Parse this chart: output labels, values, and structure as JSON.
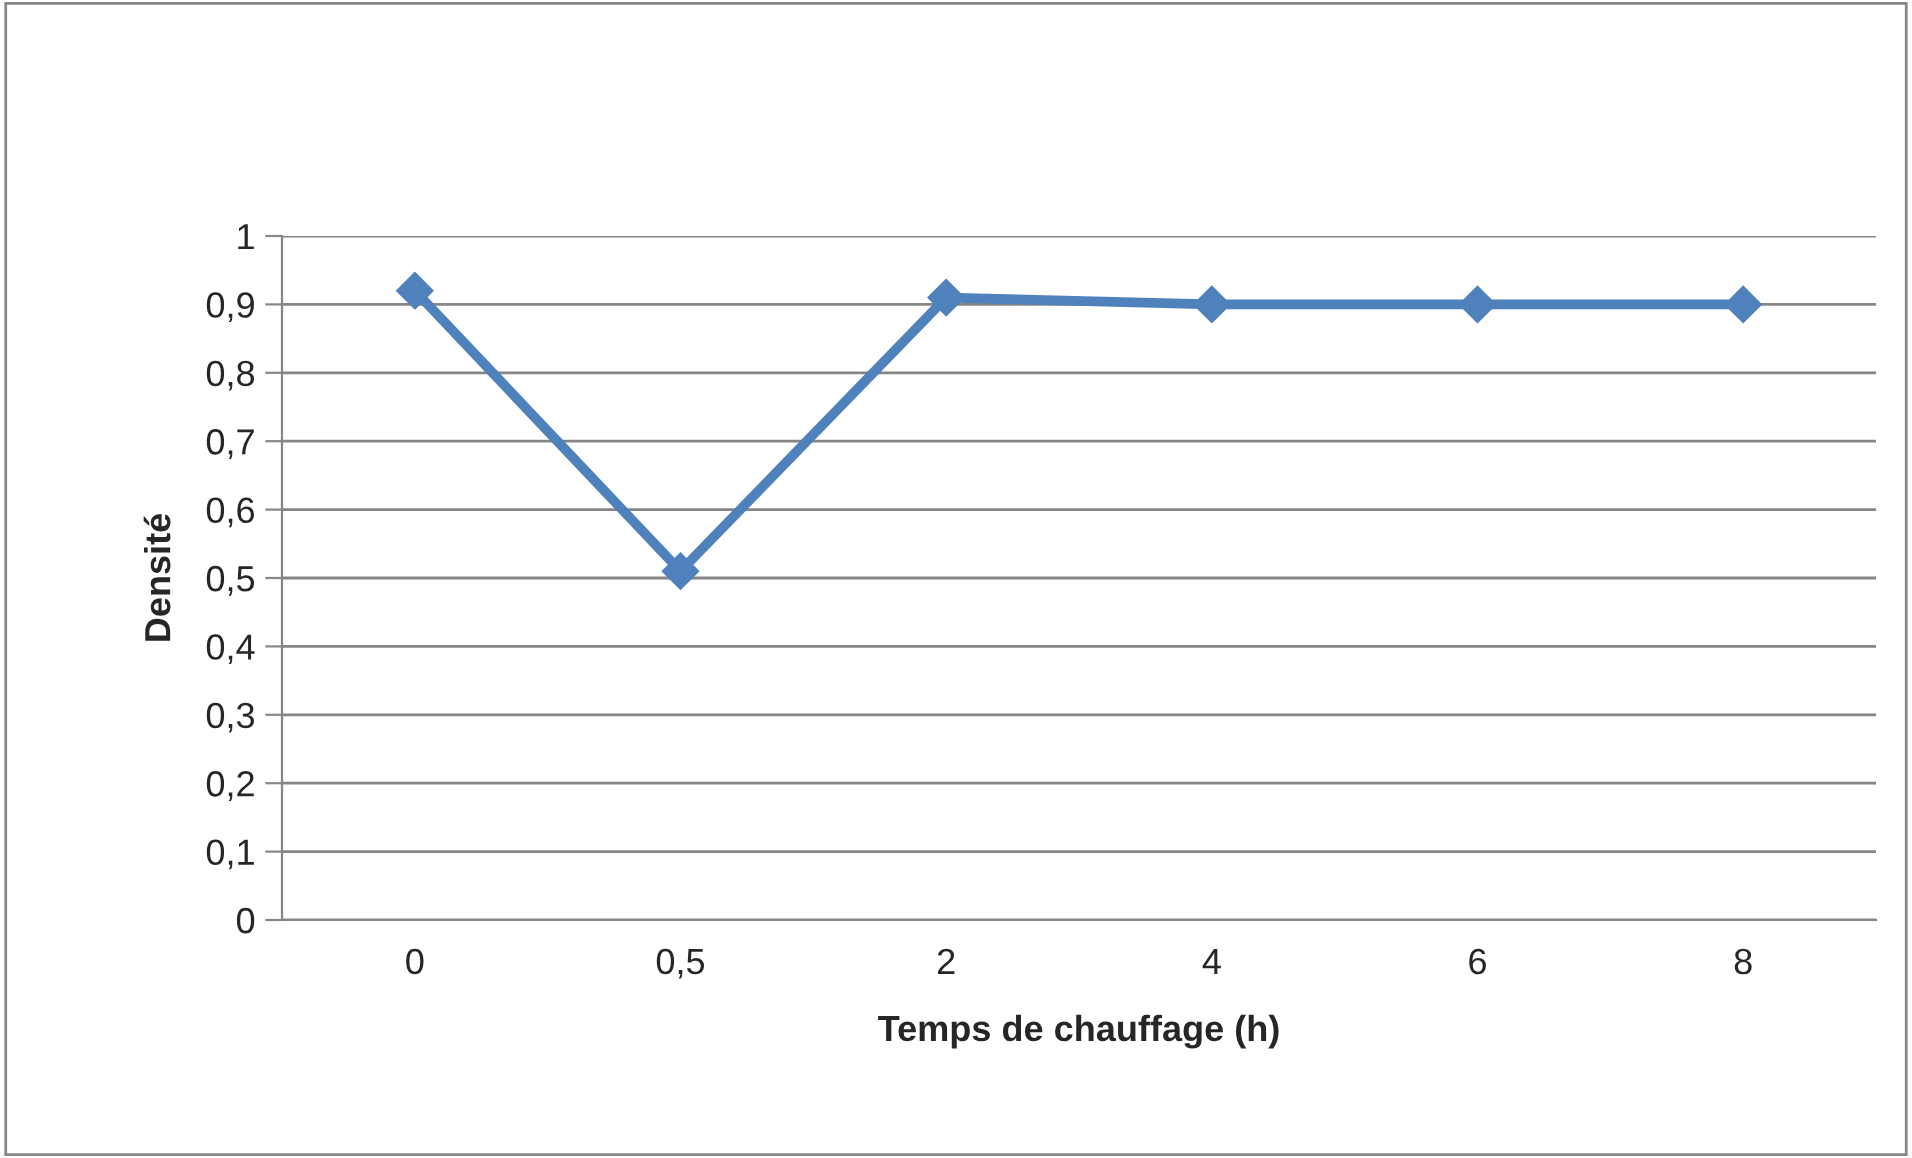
{
  "chart_data": {
    "type": "line",
    "xlabel": "Temps de chauffage (h)",
    "ylabel": "Densité",
    "categories": [
      "0",
      "0,5",
      "2",
      "4",
      "6",
      "8"
    ],
    "series": [
      {
        "color": "#4f81bd",
        "values": [
          0.92,
          0.51,
          0.91,
          0.9,
          0.9,
          0.9
        ]
      }
    ],
    "ylim": [
      0,
      1
    ],
    "yticks": [
      0,
      {
        "value": 0.1,
        "label": "0,1"
      },
      {
        "value": 0.2,
        "label": "0,2"
      },
      {
        "value": 0.3,
        "label": "0,3"
      },
      {
        "value": 0.4,
        "label": "0,4"
      },
      {
        "value": 0.5,
        "label": "0,5"
      },
      {
        "value": 0.6,
        "label": "0,6"
      },
      {
        "value": 0.7,
        "label": "0,7"
      },
      {
        "value": 0.8,
        "label": "0,8"
      },
      {
        "value": 0.9,
        "label": "0,9"
      },
      1
    ],
    "grid": "y",
    "marker": "diamond",
    "line_style": "solid",
    "legend": false
  }
}
